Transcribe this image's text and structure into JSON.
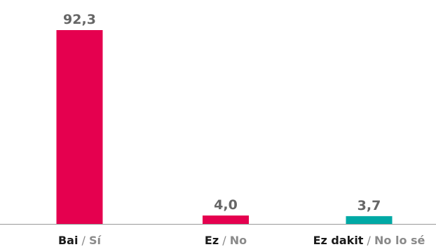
{
  "chart_data": {
    "type": "bar",
    "categories": [
      {
        "primary": "Bai",
        "secondary": "Sí"
      },
      {
        "primary": "Ez",
        "secondary": "No"
      },
      {
        "primary": "Ez dakit",
        "secondary": "No lo sé"
      }
    ],
    "values": [
      92.3,
      4.0,
      3.7
    ],
    "value_labels": [
      "92,3",
      "4,0",
      "3,7"
    ],
    "separator": "/",
    "bar_colors": [
      "#e5004f",
      "#e5004f",
      "#00a9a5"
    ],
    "axis_color": "#999999",
    "ylim": [
      0,
      92.3
    ],
    "grid": false,
    "title": "",
    "xlabel": "",
    "ylabel": ""
  }
}
